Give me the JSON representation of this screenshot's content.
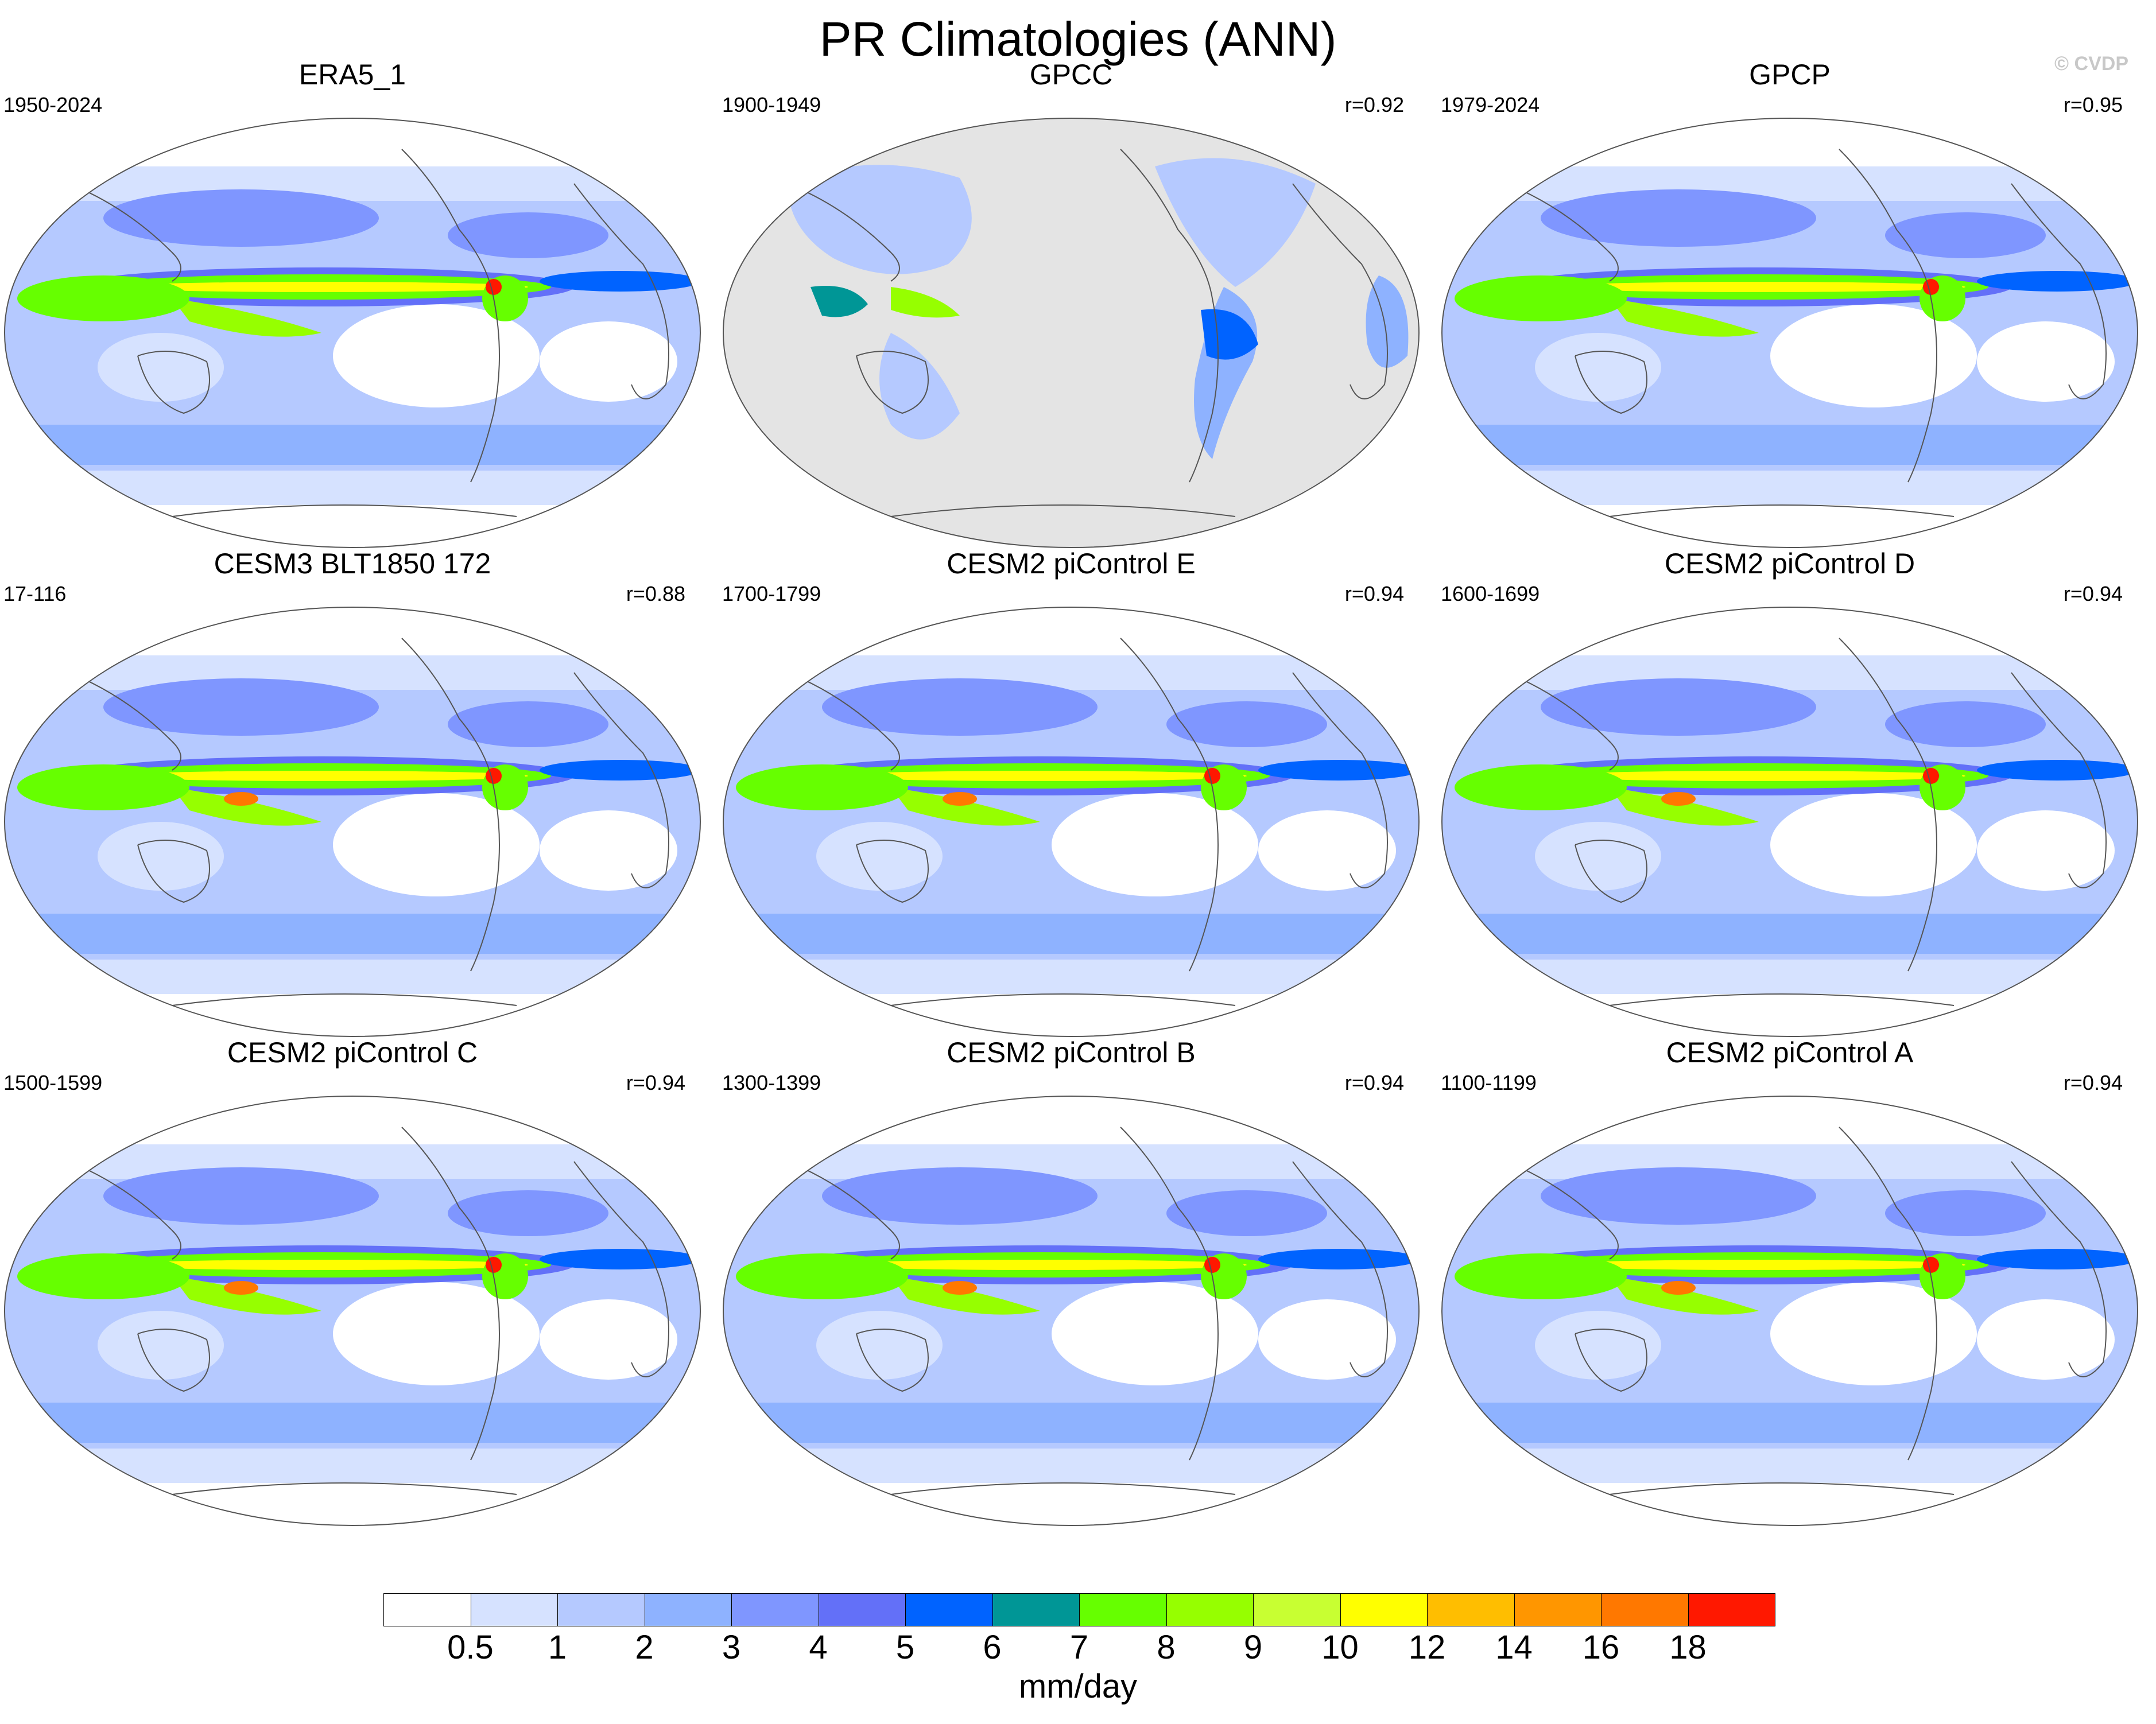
{
  "figure": {
    "title": "PR Climatologies (ANN)",
    "watermark": "© CVDP"
  },
  "panels": [
    {
      "title": "ERA5_1",
      "period": "1950-2024",
      "corr": "",
      "kind": "reanalysis"
    },
    {
      "title": "GPCC",
      "period": "1900-1949",
      "corr": "r=0.92",
      "kind": "land"
    },
    {
      "title": "GPCP",
      "period": "1979-2024",
      "corr": "r=0.95",
      "kind": "obs"
    },
    {
      "title": "CESM3 BLT1850 172",
      "period": "17-116",
      "corr": "r=0.88",
      "kind": "model"
    },
    {
      "title": "CESM2 piControl E",
      "period": "1700-1799",
      "corr": "r=0.94",
      "kind": "model"
    },
    {
      "title": "CESM2 piControl D",
      "period": "1600-1699",
      "corr": "r=0.94",
      "kind": "model"
    },
    {
      "title": "CESM2 piControl C",
      "period": "1500-1599",
      "corr": "r=0.94",
      "kind": "model"
    },
    {
      "title": "CESM2 piControl B",
      "period": "1300-1399",
      "corr": "r=0.94",
      "kind": "model"
    },
    {
      "title": "CESM2 piControl A",
      "period": "1100-1199",
      "corr": "r=0.94",
      "kind": "model"
    }
  ],
  "colorbar": {
    "units": "mm/day",
    "labels": [
      "0.5",
      "1",
      "2",
      "3",
      "4",
      "5",
      "6",
      "7",
      "8",
      "9",
      "10",
      "12",
      "14",
      "16",
      "18"
    ],
    "colors": [
      "#ffffff",
      "#d6e2ff",
      "#b5c9ff",
      "#8eb2ff",
      "#7f96ff",
      "#6370f8",
      "#0063ff",
      "#009696",
      "#66ff00",
      "#96ff00",
      "#c8ff32",
      "#ffff00",
      "#ffbe00",
      "#ff9600",
      "#ff7800",
      "#ff1800"
    ]
  }
}
